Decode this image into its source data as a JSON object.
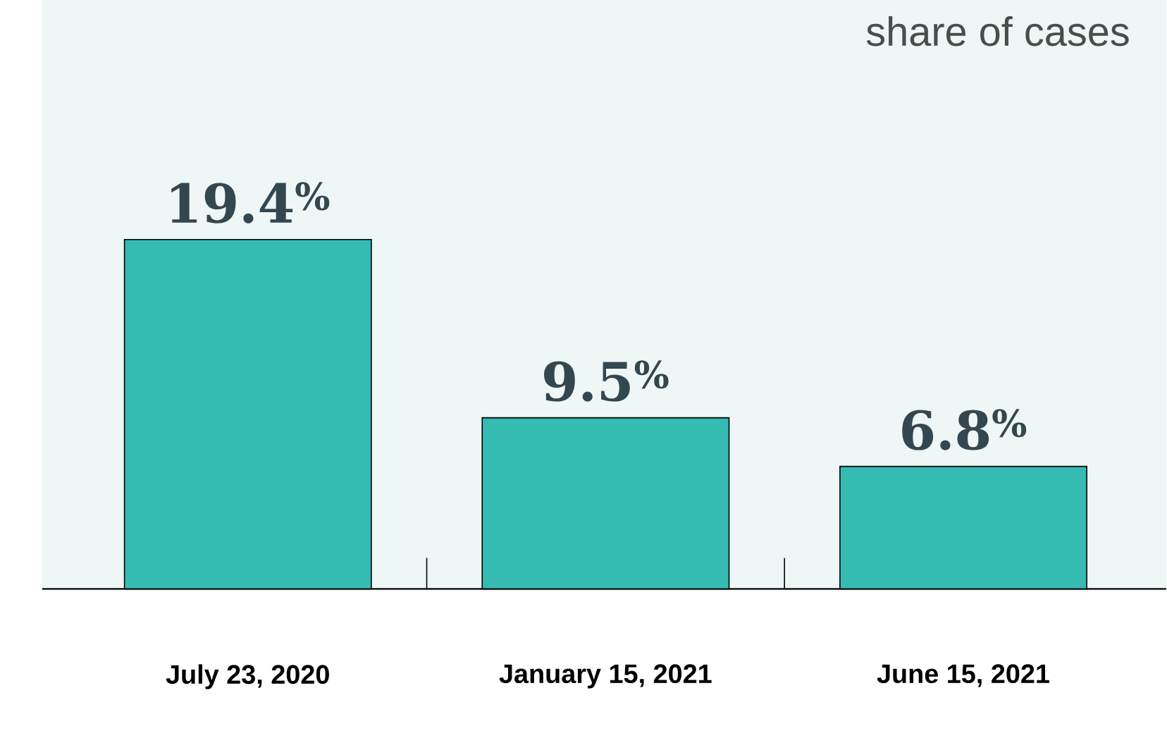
{
  "chart_data": {
    "type": "bar",
    "title": "share of cases",
    "categories": [
      "July 23, 2020",
      "January 15, 2021",
      "June 15, 2021"
    ],
    "values": [
      19.4,
      9.5,
      6.8
    ],
    "color": "#36bbb3",
    "value_labels": [
      "19.4$^{%}$",
      "9.5$^{%}$",
      "6.8$^{%}$"
    ]
  }
}
